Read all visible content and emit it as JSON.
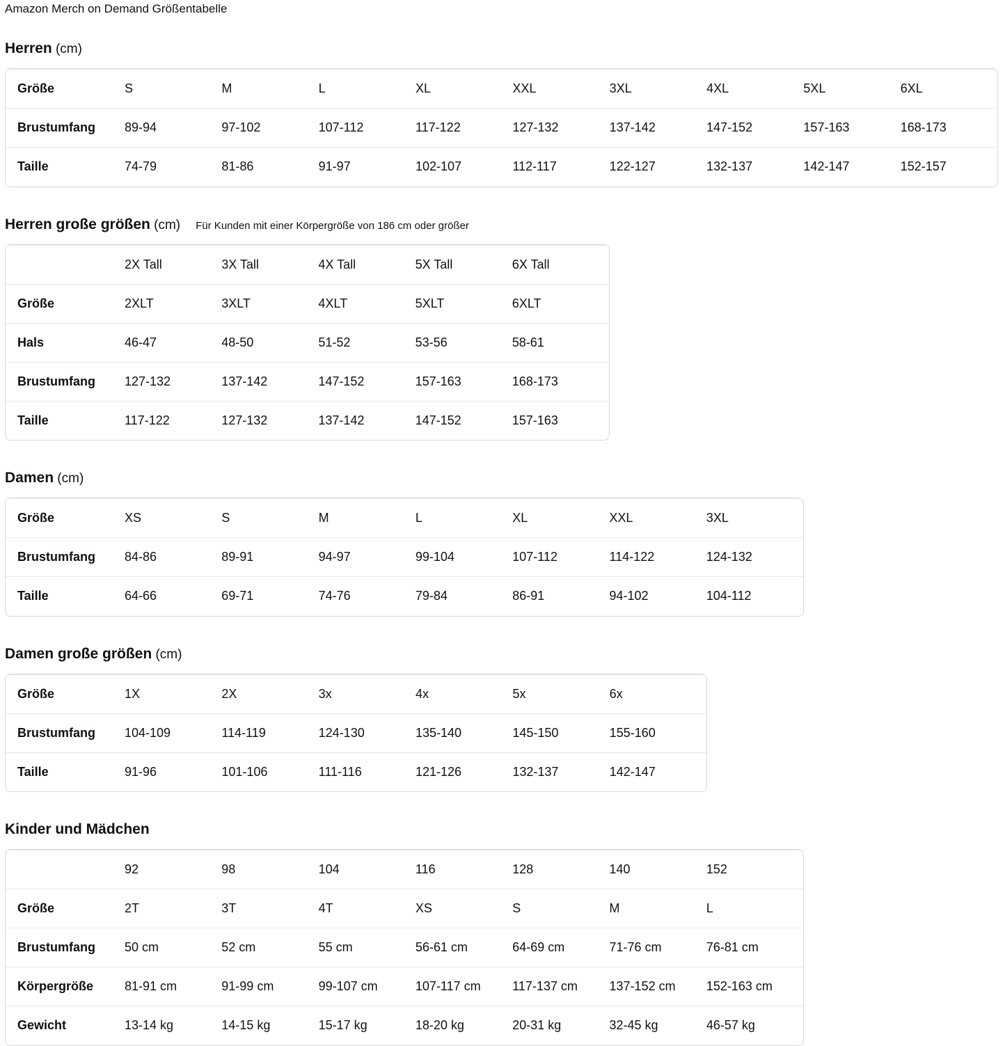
{
  "page_title": "Amazon Merch on Demand Größentabelle",
  "colors": {
    "text": "#0f1111",
    "table_border": "#d5d9d9",
    "row_separator": "#e7e7e7",
    "background": "#ffffff"
  },
  "sections": [
    {
      "id": "herren",
      "title": "Herren",
      "unit": "(cm)",
      "subtitle": "",
      "rows": [
        {
          "label": "Größe",
          "values": [
            "S",
            "M",
            "L",
            "XL",
            "XXL",
            "3XL",
            "4XL",
            "5XL",
            "6XL"
          ]
        },
        {
          "label": "Brustumfang",
          "values": [
            "89-94",
            "97-102",
            "107-112",
            "117-122",
            "127-132",
            "137-142",
            "147-152",
            "157-163",
            "168-173"
          ]
        },
        {
          "label": "Taille",
          "values": [
            "74-79",
            "81-86",
            "91-97",
            "102-107",
            "112-117",
            "122-127",
            "132-137",
            "142-147",
            "152-157"
          ]
        }
      ]
    },
    {
      "id": "herren-grosse-groessen",
      "title": "Herren große größen",
      "unit": "(cm)",
      "subtitle": "Für Kunden mit einer Körpergröße von 186 cm oder größer",
      "rows": [
        {
          "label": "",
          "values": [
            "2X Tall",
            "3X Tall",
            "4X Tall",
            "5X Tall",
            "6X Tall"
          ]
        },
        {
          "label": "Größe",
          "values": [
            "2XLT",
            "3XLT",
            "4XLT",
            "5XLT",
            "6XLT"
          ]
        },
        {
          "label": "Hals",
          "values": [
            "46-47",
            "48-50",
            "51-52",
            "53-56",
            "58-61"
          ]
        },
        {
          "label": "Brustumfang",
          "values": [
            "127-132",
            "137-142",
            "147-152",
            "157-163",
            "168-173"
          ]
        },
        {
          "label": "Taille",
          "values": [
            "117-122",
            "127-132",
            "137-142",
            "147-152",
            "157-163"
          ]
        }
      ]
    },
    {
      "id": "damen",
      "title": "Damen",
      "unit": "(cm)",
      "subtitle": "",
      "rows": [
        {
          "label": "Größe",
          "values": [
            "XS",
            "S",
            "M",
            "L",
            "XL",
            "XXL",
            "3XL"
          ]
        },
        {
          "label": "Brustumfang",
          "values": [
            "84-86",
            "89-91",
            "94-97",
            "99-104",
            "107-112",
            "114-122",
            "124-132"
          ]
        },
        {
          "label": "Taille",
          "values": [
            "64-66",
            "69-71",
            "74-76",
            "79-84",
            "86-91",
            "94-102",
            "104-112"
          ]
        }
      ]
    },
    {
      "id": "damen-grosse-groessen",
      "title": "Damen große größen",
      "unit": "(cm)",
      "subtitle": "",
      "rows": [
        {
          "label": "Größe",
          "values": [
            "1X",
            "2X",
            "3x",
            "4x",
            "5x",
            "6x"
          ]
        },
        {
          "label": "Brustumfang",
          "values": [
            "104-109",
            "114-119",
            "124-130",
            "135-140",
            "145-150",
            "155-160"
          ]
        },
        {
          "label": "Taille",
          "values": [
            "91-96",
            "101-106",
            "111-116",
            "121-126",
            "132-137",
            "142-147"
          ]
        }
      ]
    },
    {
      "id": "kinder-und-maedchen",
      "title": "Kinder und Mädchen",
      "unit": "",
      "subtitle": "",
      "rows": [
        {
          "label": "",
          "values": [
            "92",
            "98",
            "104",
            "116",
            "128",
            "140",
            "152"
          ]
        },
        {
          "label": "Größe",
          "values": [
            "2T",
            "3T",
            "4T",
            "XS",
            "S",
            "M",
            "L"
          ]
        },
        {
          "label": "Brustumfang",
          "values": [
            "50 cm",
            "52 cm",
            "55 cm",
            "56-61 cm",
            "64-69 cm",
            "71-76 cm",
            "76-81 cm"
          ]
        },
        {
          "label": "Körpergröße",
          "values": [
            "81-91 cm",
            "91-99 cm",
            "99-107 cm",
            "107-117 cm",
            "117-137 cm",
            "137-152 cm",
            "152-163 cm"
          ]
        },
        {
          "label": "Gewicht",
          "values": [
            "13-14 kg",
            "14-15 kg",
            "15-17 kg",
            "18-20 kg",
            "20-31 kg",
            "32-45 kg",
            "46-57 kg"
          ]
        }
      ]
    }
  ]
}
